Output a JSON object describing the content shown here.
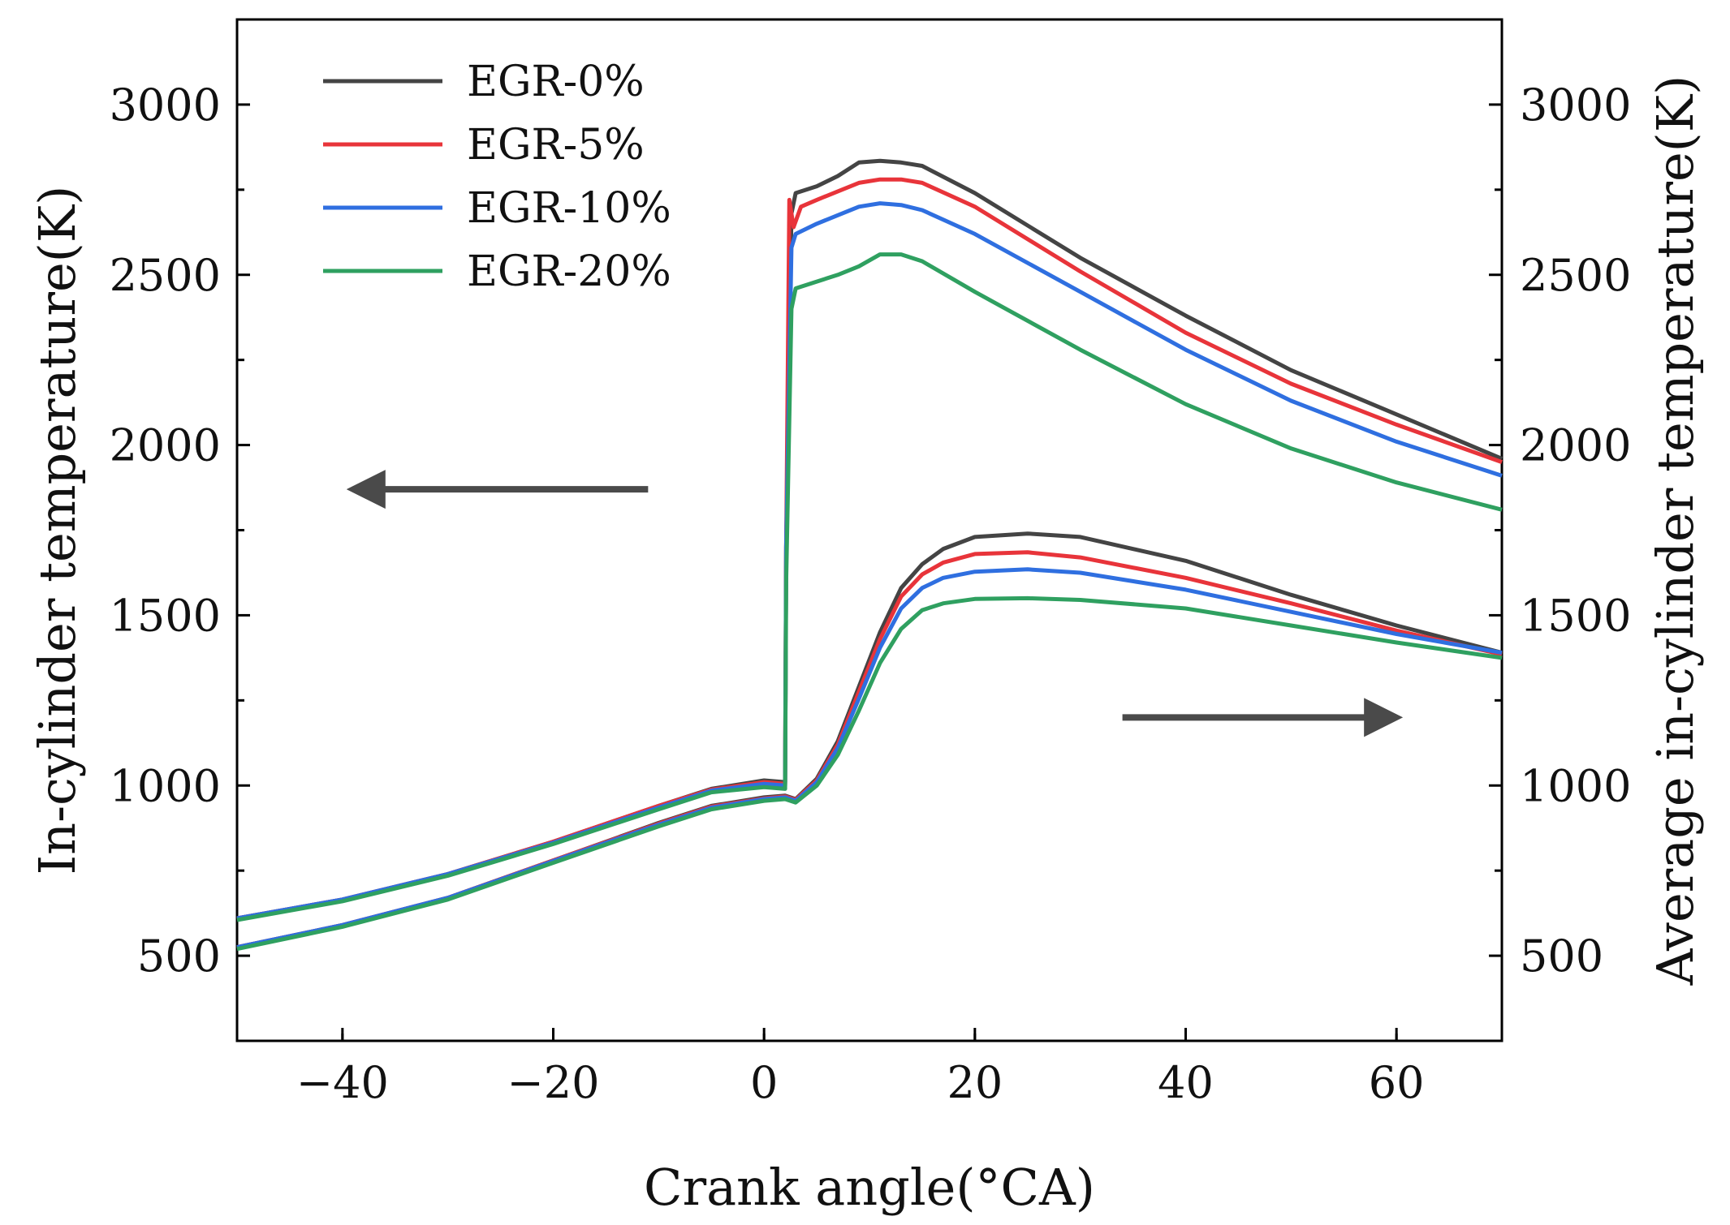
{
  "chart_data": {
    "type": "line",
    "xlabel": "Crank angle(°CA)",
    "ylabel_left": "In-cylinder temperature(K)",
    "ylabel_right": "Average in-cylinder temperature(K)",
    "xlim": [
      -50,
      70
    ],
    "ylim": [
      250,
      3250
    ],
    "x_ticks": [
      -40,
      -20,
      0,
      20,
      40,
      60
    ],
    "x_tick_labels": [
      "−40",
      "−20",
      "0",
      "20",
      "40",
      "60"
    ],
    "y_ticks": [
      500,
      1000,
      1500,
      2000,
      2500,
      3000
    ],
    "y_tick_labels": [
      "500",
      "1000",
      "1500",
      "2000",
      "2500",
      "3000"
    ],
    "grid": false,
    "legend_position": "top-left",
    "arrows": [
      {
        "points_to": "left-axis",
        "x_from": -11,
        "x_to": -39,
        "y": 1870
      },
      {
        "points_to": "right-axis",
        "x_from": 34,
        "x_to": 60,
        "y": 1200
      }
    ],
    "series": [
      {
        "name": "EGR-0%",
        "color": "#444444",
        "group": "in-cylinder",
        "x": [
          -50,
          -40,
          -30,
          -20,
          -10,
          -5,
          0,
          2,
          2.1,
          2.6,
          3,
          5,
          7,
          9,
          11,
          13,
          15,
          20,
          30,
          40,
          50,
          60,
          70
        ],
        "y": [
          610,
          665,
          740,
          835,
          940,
          990,
          1015,
          1010,
          1700,
          2680,
          2740,
          2760,
          2790,
          2830,
          2835,
          2830,
          2820,
          2740,
          2550,
          2380,
          2220,
          2090,
          1960
        ]
      },
      {
        "name": "EGR-5%",
        "color": "#e8343a",
        "group": "in-cylinder",
        "x": [
          -50,
          -40,
          -30,
          -20,
          -10,
          -5,
          0,
          2,
          2.1,
          2.4,
          2.8,
          3.5,
          5,
          7,
          9,
          11,
          13,
          15,
          20,
          30,
          40,
          50,
          60,
          70
        ],
        "y": [
          610,
          665,
          740,
          835,
          940,
          988,
          1010,
          1005,
          1700,
          2720,
          2640,
          2700,
          2720,
          2745,
          2770,
          2780,
          2780,
          2770,
          2700,
          2510,
          2330,
          2180,
          2060,
          1950
        ]
      },
      {
        "name": "EGR-10%",
        "color": "#2f6fe0",
        "group": "in-cylinder",
        "x": [
          -50,
          -40,
          -30,
          -20,
          -10,
          -5,
          0,
          2,
          2.1,
          2.6,
          3,
          5,
          7,
          9,
          11,
          13,
          15,
          20,
          30,
          40,
          50,
          60,
          70
        ],
        "y": [
          610,
          665,
          740,
          832,
          935,
          985,
          1005,
          1000,
          1700,
          2580,
          2620,
          2650,
          2675,
          2700,
          2710,
          2705,
          2690,
          2620,
          2450,
          2280,
          2130,
          2010,
          1910
        ]
      },
      {
        "name": "EGR-20%",
        "color": "#2fa060",
        "group": "in-cylinder",
        "x": [
          -50,
          -40,
          -30,
          -20,
          -10,
          -5,
          0,
          2,
          2.1,
          2.6,
          3,
          5,
          7,
          9,
          11,
          13,
          15,
          20,
          30,
          40,
          50,
          60,
          70
        ],
        "y": [
          605,
          660,
          735,
          828,
          930,
          980,
          995,
          990,
          1600,
          2400,
          2460,
          2480,
          2500,
          2525,
          2560,
          2560,
          2540,
          2450,
          2280,
          2120,
          1990,
          1890,
          1810
        ]
      },
      {
        "name": "EGR-0%",
        "color": "#444444",
        "group": "average",
        "x": [
          -50,
          -40,
          -30,
          -20,
          -10,
          -5,
          0,
          2,
          3,
          5,
          7,
          9,
          11,
          13,
          15,
          17,
          20,
          25,
          30,
          40,
          50,
          60,
          70
        ],
        "y": [
          525,
          590,
          670,
          780,
          890,
          940,
          965,
          970,
          960,
          1020,
          1130,
          1290,
          1450,
          1580,
          1650,
          1695,
          1730,
          1740,
          1730,
          1660,
          1560,
          1470,
          1390
        ]
      },
      {
        "name": "EGR-5%",
        "color": "#e8343a",
        "group": "average",
        "x": [
          -50,
          -40,
          -30,
          -20,
          -10,
          -5,
          0,
          2,
          3,
          5,
          7,
          9,
          11,
          13,
          15,
          17,
          20,
          25,
          30,
          40,
          50,
          60,
          70
        ],
        "y": [
          525,
          590,
          670,
          780,
          888,
          938,
          962,
          968,
          958,
          1015,
          1120,
          1275,
          1430,
          1555,
          1620,
          1655,
          1680,
          1685,
          1670,
          1610,
          1535,
          1455,
          1385
        ]
      },
      {
        "name": "EGR-10%",
        "color": "#2f6fe0",
        "group": "average",
        "x": [
          -50,
          -40,
          -30,
          -20,
          -10,
          -5,
          0,
          2,
          3,
          5,
          7,
          9,
          11,
          13,
          15,
          17,
          20,
          25,
          30,
          40,
          50,
          60,
          70
        ],
        "y": [
          525,
          590,
          670,
          778,
          885,
          935,
          960,
          965,
          955,
          1010,
          1110,
          1255,
          1405,
          1520,
          1580,
          1610,
          1628,
          1635,
          1625,
          1575,
          1510,
          1445,
          1390
        ]
      },
      {
        "name": "EGR-20%",
        "color": "#2fa060",
        "group": "average",
        "x": [
          -50,
          -40,
          -30,
          -20,
          -10,
          -5,
          0,
          2,
          3,
          5,
          7,
          9,
          11,
          13,
          15,
          17,
          20,
          25,
          30,
          40,
          50,
          60,
          70
        ],
        "y": [
          520,
          585,
          665,
          773,
          880,
          930,
          955,
          960,
          950,
          1000,
          1090,
          1220,
          1360,
          1460,
          1515,
          1535,
          1548,
          1550,
          1545,
          1520,
          1470,
          1420,
          1375
        ]
      }
    ]
  }
}
